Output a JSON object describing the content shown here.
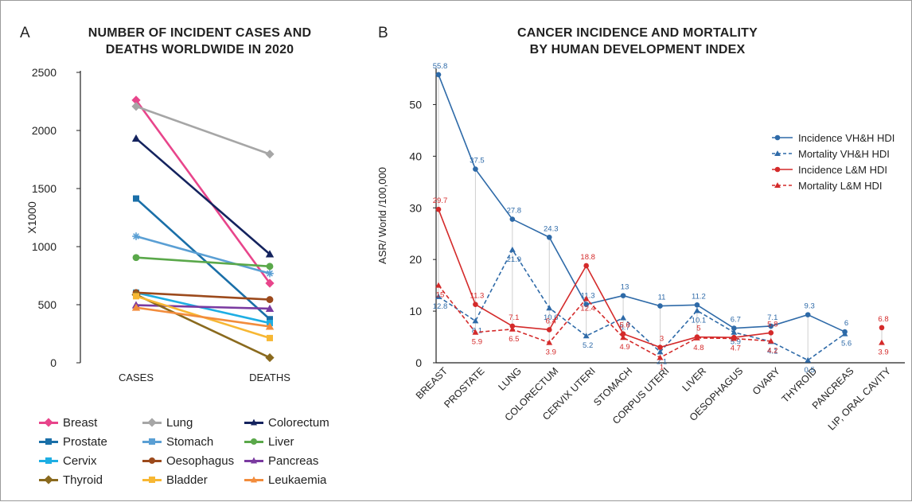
{
  "panel_a": {
    "letter": "A",
    "title_line1": "NUMBER OF INCIDENT CASES AND",
    "title_line2": "DEATHS WORLDWIDE IN 2020"
  },
  "panel_b": {
    "letter": "B",
    "title_line1": "CANCER INCIDENCE AND MORTALITY",
    "title_line2": "BY HUMAN DEVELOPMENT INDEX"
  },
  "chart_data": [
    {
      "type": "line",
      "title": "NUMBER OF INCIDENT CASES AND DEATHS WORLDWIDE IN 2020",
      "xlabel": "",
      "ylabel": "X1000",
      "categories": [
        "CASES",
        "DEATHS"
      ],
      "ylim": [
        0,
        2500
      ],
      "yticks": [
        0,
        500,
        1000,
        1500,
        2000,
        2500
      ],
      "grid": false,
      "legend_position": "bottom",
      "series": [
        {
          "name": "Breast",
          "values": [
            2261,
            685
          ],
          "color": "#e8458b",
          "marker": "diamond"
        },
        {
          "name": "Lung",
          "values": [
            2207,
            1796
          ],
          "color": "#a6a6a6",
          "marker": "diamond"
        },
        {
          "name": "Colorectum",
          "values": [
            1931,
            935
          ],
          "color": "#14235e",
          "marker": "triangle"
        },
        {
          "name": "Prostate",
          "values": [
            1414,
            375
          ],
          "color": "#1a6fa8",
          "marker": "square"
        },
        {
          "name": "Stomach",
          "values": [
            1089,
            769
          ],
          "color": "#5a9fd4",
          "marker": "asterisk"
        },
        {
          "name": "Liver",
          "values": [
            906,
            830
          ],
          "color": "#5aa84a",
          "marker": "circle"
        },
        {
          "name": "Cervix",
          "values": [
            604,
            342
          ],
          "color": "#1eaee3",
          "marker": "square"
        },
        {
          "name": "Oesophagus",
          "values": [
            604,
            544
          ],
          "color": "#9c4a1c",
          "marker": "circle"
        },
        {
          "name": "Pancreas",
          "values": [
            496,
            466
          ],
          "color": "#7a3aa0",
          "marker": "triangle"
        },
        {
          "name": "Thyroid",
          "values": [
            586,
            44
          ],
          "color": "#8a6a1e",
          "marker": "diamond"
        },
        {
          "name": "Bladder",
          "values": [
            573,
            213
          ],
          "color": "#f7b733",
          "marker": "square"
        },
        {
          "name": "Leukaemia",
          "values": [
            475,
            312
          ],
          "color": "#f28c3c",
          "marker": "triangle"
        }
      ]
    },
    {
      "type": "line",
      "title": "CANCER INCIDENCE AND MORTALITY BY HUMAN DEVELOPMENT INDEX",
      "xlabel": "",
      "ylabel": "ASR/ World /100,000",
      "categories": [
        "BREAST",
        "PROSTATE",
        "LUNG",
        "COLORECTUM",
        "CERVIX UTERI",
        "STOMACH",
        "CORPUS UTERI",
        "LIVER",
        "OESOPHAGUS",
        "OVARY",
        "THYROID",
        "PANCREAS",
        "LIP, ORAL CAVITY"
      ],
      "ylim": [
        0,
        57
      ],
      "yticks": [
        0,
        10,
        20,
        30,
        40,
        50
      ],
      "grid": false,
      "legend_position": "top-right",
      "series": [
        {
          "name": "Incidence VH&H HDI",
          "color": "#2e6aa8",
          "dashed": false,
          "marker": "circle",
          "values": [
            55.8,
            37.5,
            27.8,
            24.3,
            11.3,
            13,
            11,
            11.2,
            6.7,
            7.1,
            9.3,
            6,
            null
          ],
          "labels": [
            "55.8",
            "37.5",
            "27.8",
            "24.3",
            "11.3",
            "13",
            "11",
            "11.2",
            "6.7",
            "7.1",
            "9.3",
            "6",
            ""
          ]
        },
        {
          "name": "Mortality VH&H HDI",
          "color": "#2e6aa8",
          "dashed": true,
          "marker": "triangle",
          "values": [
            12.8,
            8.1,
            21.9,
            10.6,
            5.2,
            8.7,
            2.1,
            10.1,
            5.9,
            4.1,
            0.5,
            5.6,
            null
          ],
          "labels": [
            "12.8",
            "8.1",
            "21.9",
            "10.6",
            "5.2",
            "8.7",
            "2.1",
            "10.1",
            "5.9",
            "4.1",
            "0.5",
            "5.6",
            ""
          ]
        },
        {
          "name": "Incidence L&M HDI",
          "color": "#d42a2a",
          "dashed": false,
          "marker": "circle",
          "values": [
            29.7,
            11.3,
            7.1,
            6.4,
            18.8,
            5.6,
            3,
            5,
            4.9,
            5.8,
            null,
            null,
            6.8
          ],
          "labels": [
            "29.7",
            "11.3",
            "7.1",
            "6.4",
            "18.8",
            "5.6",
            "3",
            "5",
            "",
            "5.8",
            "",
            "",
            "6.8"
          ]
        },
        {
          "name": "Mortality L&M HDI",
          "color": "#d42a2a",
          "dashed": true,
          "marker": "triangle",
          "values": [
            15,
            5.9,
            6.5,
            3.9,
            12.4,
            4.9,
            1,
            4.8,
            4.7,
            4.2,
            null,
            null,
            3.9
          ],
          "labels": [
            "15",
            "5.9",
            "6.5",
            "3.9",
            "12.4",
            "4.9",
            "1",
            "4.8",
            "4.7",
            "4.2",
            "",
            "",
            "3.9"
          ]
        }
      ]
    }
  ]
}
